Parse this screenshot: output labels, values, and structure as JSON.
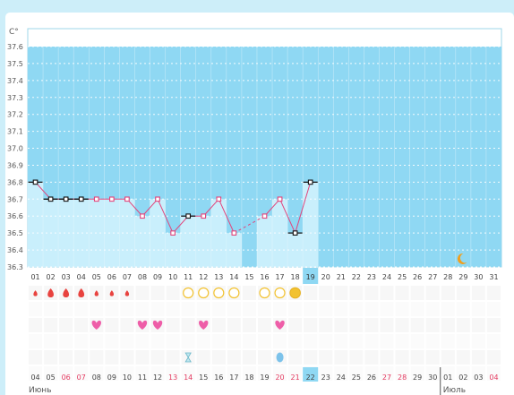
{
  "chart_data": {
    "type": "line",
    "unit_label": "C°",
    "y_ticks": [
      "37.6",
      "37.5",
      "37.4",
      "37.3",
      "37.2",
      "37.1",
      "37.0",
      "36.9",
      "36.8",
      "36.7",
      "36.6",
      "36.5",
      "36.4",
      "36.3"
    ],
    "ylim": [
      36.3,
      37.6
    ],
    "cycle_days": [
      "01",
      "02",
      "03",
      "04",
      "05",
      "06",
      "07",
      "08",
      "09",
      "10",
      "11",
      "12",
      "13",
      "14",
      "15",
      "16",
      "17",
      "18",
      "19",
      "20",
      "21",
      "22",
      "23",
      "24",
      "25",
      "26",
      "27",
      "28",
      "29",
      "30",
      "31"
    ],
    "current_day_index": 18,
    "temperatures": [
      36.8,
      36.7,
      36.7,
      36.7,
      36.7,
      36.7,
      36.7,
      36.6,
      36.7,
      36.5,
      36.6,
      36.6,
      36.7,
      36.5,
      null,
      36.6,
      36.7,
      36.5,
      36.8
    ],
    "black_marker_days": [
      1,
      2,
      3,
      4,
      11,
      18,
      19
    ],
    "menstruation_days": [
      1,
      2,
      3,
      4,
      5,
      6,
      7
    ],
    "menstruation_sizes": [
      "small",
      "large",
      "large",
      "large",
      "small",
      "small",
      "small"
    ],
    "mucus_open_days": [
      11,
      12,
      13,
      14,
      16,
      17
    ],
    "mucus_filled_days": [
      18
    ],
    "intercourse_days": [
      5,
      8,
      9,
      12,
      17
    ],
    "test_days": [
      11
    ],
    "drop_days": [
      17
    ],
    "moon_day": 29,
    "calendar_dates": [
      "04",
      "05",
      "06",
      "07",
      "08",
      "09",
      "10",
      "11",
      "12",
      "13",
      "14",
      "15",
      "16",
      "17",
      "18",
      "19",
      "20",
      "21",
      "22",
      "23",
      "24",
      "25",
      "26",
      "27",
      "28",
      "29",
      "30",
      "01",
      "02",
      "03",
      "04"
    ],
    "weekend_date_indices": [
      2,
      3,
      9,
      10,
      16,
      17,
      23,
      24,
      30
    ],
    "months": [
      "Июнь",
      "Июль"
    ],
    "month_split_index": 27
  },
  "colors": {
    "panel_bg": "#8fd8f3",
    "bar_fill": "#c9effc",
    "line": "#e2457c",
    "point": "#e2457c",
    "blood": "#e8433f",
    "mucus": "#f2c230",
    "heart": "#ee5ea8",
    "weekend_text": "#e33a60",
    "current_day_bg": "#8fd8f3"
  }
}
